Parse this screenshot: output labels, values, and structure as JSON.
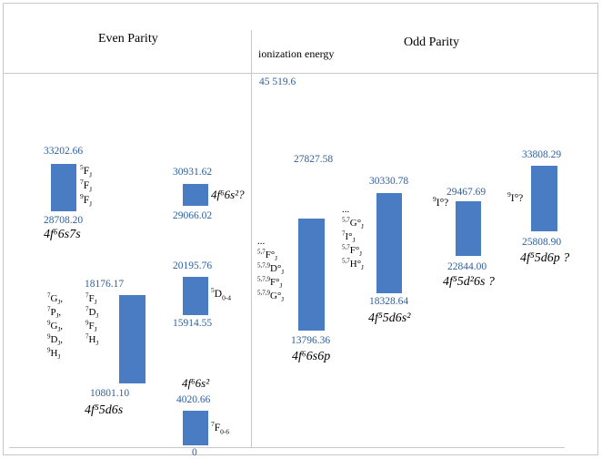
{
  "headers": {
    "even": "Even Parity",
    "odd": "Odd Parity",
    "ionization_label": "ionization energy",
    "ionization_value": "45 519.6"
  },
  "colors": {
    "bar": "#4a7cc4",
    "numbers": "#2f5f9a",
    "grid": "#c8c8c8"
  },
  "levels": [
    {
      "id": "f66s7s",
      "top": "33202.66",
      "bottom": "28708.20",
      "config": "4f⁶6s7s",
      "terms": [
        "⁵F_J",
        "⁷F_J",
        "⁹F_J"
      ]
    },
    {
      "id": "f66s2q",
      "top": "30931.62",
      "bottom": "29066.02",
      "config": "4f⁶6s²?"
    },
    {
      "id": "f66s2",
      "top": "20195.76",
      "bottom": "15914.55",
      "config": "4f⁶6s²",
      "terms": [
        "⁵D₀₋₄"
      ]
    },
    {
      "id": "f55d6s",
      "top": "18176.17",
      "bottom": "10801.10",
      "config": "4f⁵5d6s",
      "terms_left": [
        "⁷G_J,",
        "⁷P_J,",
        "⁹G_J,",
        "⁹D_J,",
        "⁹H_J"
      ],
      "terms_right": [
        "⁷F_J",
        "⁷D_J",
        "⁹F_J",
        "⁷H_J"
      ]
    },
    {
      "id": "ground",
      "top": "4020.66",
      "bottom": "0",
      "terms": [
        "⁷F₀₋₆"
      ]
    },
    {
      "id": "f66s6p",
      "top": "27827.58",
      "bottom": "13796.36",
      "config": "4f⁶6s6p",
      "terms": [
        "...",
        "⁵,⁷F°_J",
        "⁵,⁷,⁹D°_J",
        "⁵,⁷,⁹F°_J",
        "⁵,⁷,⁹G°_J"
      ]
    },
    {
      "id": "f55d6s2",
      "top": "30330.78",
      "bottom": "18328.64",
      "config": "4f⁵5d6s²",
      "terms": [
        "...",
        "⁵,⁷G°_J",
        "⁷I°_J",
        "⁵,⁷F°_J",
        "⁵,⁷H°_J"
      ]
    },
    {
      "id": "f55d26s",
      "top": "29467.69",
      "bottom": "22844.00",
      "config": "4f⁵5d²6s ?",
      "terms": [
        "⁹I°?"
      ]
    },
    {
      "id": "f55d6p",
      "top": "33808.29",
      "bottom": "25808.90",
      "config": "4f⁵5d6p ?",
      "terms": [
        "⁹I°?"
      ]
    }
  ]
}
